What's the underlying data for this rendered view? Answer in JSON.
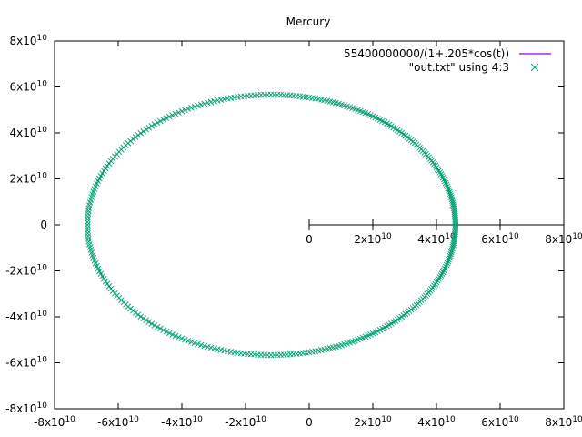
{
  "chart_data": {
    "type": "scatter",
    "title": "Mercury",
    "xlabel": "",
    "ylabel": "",
    "xlim": [
      -80000000000.0,
      80000000000.0
    ],
    "ylim": [
      -80000000000.0,
      80000000000.0
    ],
    "x_ticks": [
      {
        "value": -80000000000.0,
        "base": "-8x10",
        "exp": "10"
      },
      {
        "value": -60000000000.0,
        "base": "-6x10",
        "exp": "10"
      },
      {
        "value": -40000000000.0,
        "base": "-4x10",
        "exp": "10"
      },
      {
        "value": -20000000000.0,
        "base": "-2x10",
        "exp": "10"
      },
      {
        "value": 0,
        "base": "0",
        "exp": ""
      },
      {
        "value": 20000000000.0,
        "base": "2x10",
        "exp": "10"
      },
      {
        "value": 40000000000.0,
        "base": "4x10",
        "exp": "10"
      },
      {
        "value": 60000000000.0,
        "base": "6x10",
        "exp": "10"
      },
      {
        "value": 80000000000.0,
        "base": "8x10",
        "exp": "10"
      }
    ],
    "y_ticks": [
      {
        "value": 80000000000.0,
        "base": "8x10",
        "exp": "10"
      },
      {
        "value": 60000000000.0,
        "base": "6x10",
        "exp": "10"
      },
      {
        "value": 40000000000.0,
        "base": "4x10",
        "exp": "10"
      },
      {
        "value": 20000000000.0,
        "base": "2x10",
        "exp": "10"
      },
      {
        "value": 0,
        "base": "0",
        "exp": ""
      },
      {
        "value": -20000000000.0,
        "base": "-2x10",
        "exp": "10"
      },
      {
        "value": -40000000000.0,
        "base": "-4x10",
        "exp": "10"
      },
      {
        "value": -60000000000.0,
        "base": "-6x10",
        "exp": "10"
      },
      {
        "value": -80000000000.0,
        "base": "-8x10",
        "exp": "10"
      }
    ],
    "inner_axis_ticks": [
      {
        "value": 0,
        "base": "0",
        "exp": ""
      },
      {
        "value": 20000000000.0,
        "base": "2x10",
        "exp": "10"
      },
      {
        "value": 40000000000.0,
        "base": "4x10",
        "exp": "10"
      },
      {
        "value": 60000000000.0,
        "base": "6x10",
        "exp": "10"
      },
      {
        "value": 80000000000.0,
        "base": "8x10",
        "exp": "10"
      }
    ],
    "series": [
      {
        "name": "55400000000/(1+.205*cos(t))",
        "kind": "line",
        "color": "#9400d3",
        "points": []
      },
      {
        "name": "\"out.txt\" using 4:3",
        "kind": "points",
        "marker": "x",
        "color": "#009e73",
        "orbit": {
          "semi_latus_rectum": 55400000000,
          "eccentricity": 0.205,
          "point_count": 360
        }
      }
    ],
    "grid": false,
    "legend": "top-right"
  }
}
